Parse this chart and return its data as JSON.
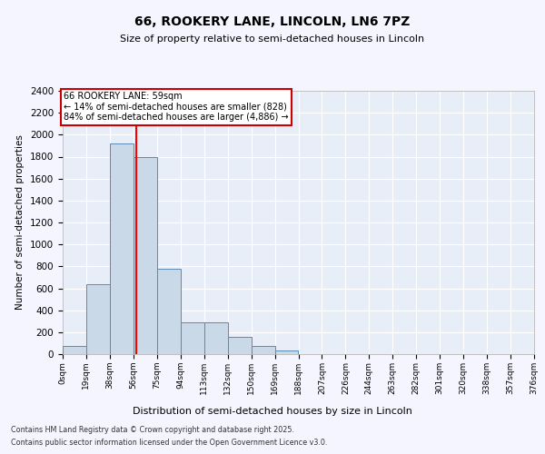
{
  "title1": "66, ROOKERY LANE, LINCOLN, LN6 7PZ",
  "title2": "Size of property relative to semi-detached houses in Lincoln",
  "xlabel": "Distribution of semi-detached houses by size in Lincoln",
  "ylabel": "Number of semi-detached properties",
  "bin_labels": [
    "0sqm",
    "19sqm",
    "38sqm",
    "56sqm",
    "75sqm",
    "94sqm",
    "113sqm",
    "132sqm",
    "150sqm",
    "169sqm",
    "188sqm",
    "207sqm",
    "226sqm",
    "244sqm",
    "263sqm",
    "282sqm",
    "301sqm",
    "320sqm",
    "338sqm",
    "357sqm",
    "376sqm"
  ],
  "bar_heights": [
    75,
    640,
    1920,
    1800,
    775,
    290,
    290,
    160,
    75,
    35,
    0,
    0,
    0,
    0,
    0,
    0,
    0,
    0,
    0,
    0
  ],
  "bar_color": "#c9d9e8",
  "bar_edge_color": "#5a8ab5",
  "red_line_x": 59,
  "annotation_title": "66 ROOKERY LANE: 59sqm",
  "annotation_line1": "← 14% of semi-detached houses are smaller (828)",
  "annotation_line2": "84% of semi-detached houses are larger (4,886) →",
  "annotation_box_color": "#cc0000",
  "ylim": [
    0,
    2400
  ],
  "yticks": [
    0,
    200,
    400,
    600,
    800,
    1000,
    1200,
    1400,
    1600,
    1800,
    2000,
    2200,
    2400
  ],
  "background_color": "#e8eef8",
  "grid_color": "#ffffff",
  "fig_bg_color": "#f5f5ff",
  "footer1": "Contains HM Land Registry data © Crown copyright and database right 2025.",
  "footer2": "Contains public sector information licensed under the Open Government Licence v3.0."
}
